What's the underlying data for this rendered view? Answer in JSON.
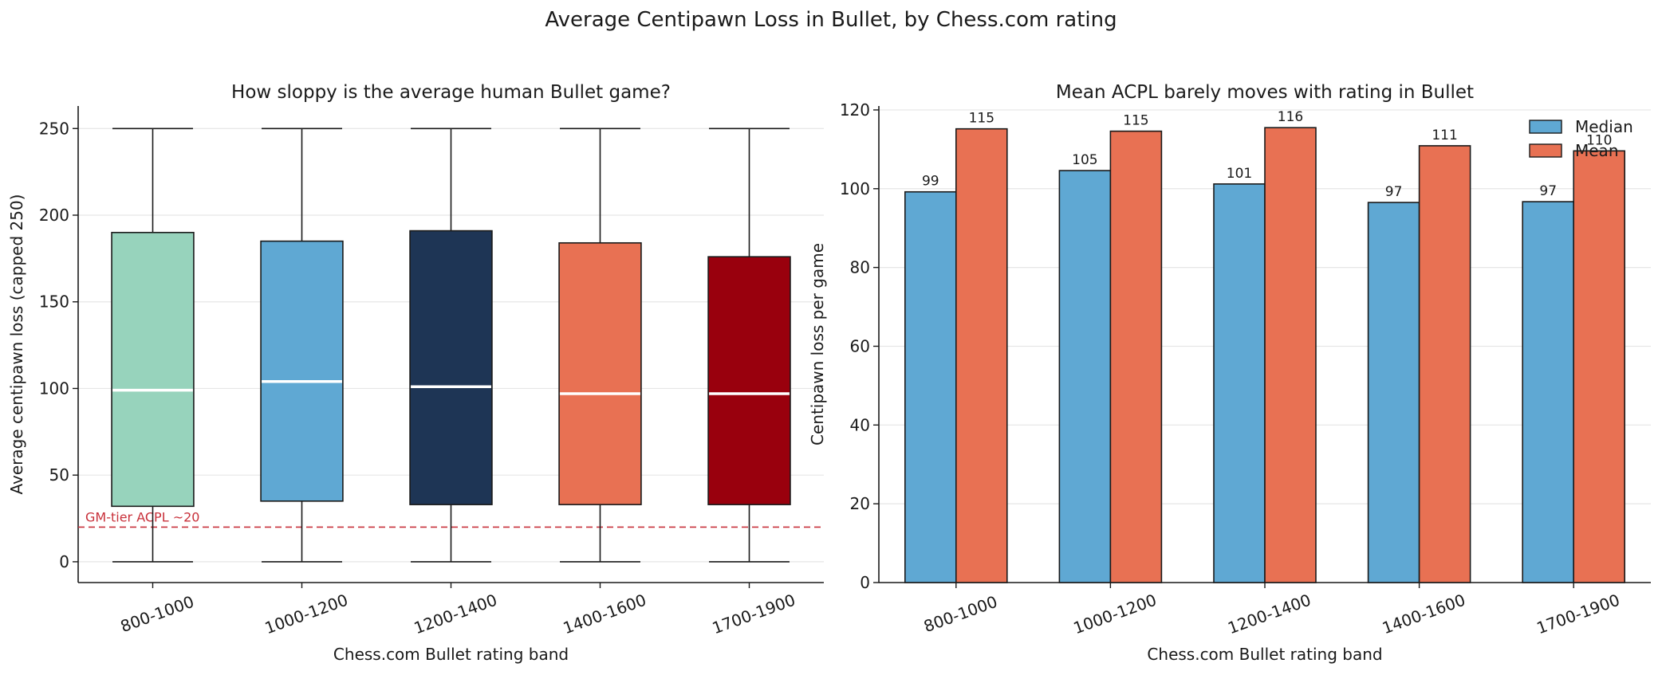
{
  "figure": {
    "suptitle": "Average Centipawn Loss in Bullet, by Chess.com rating"
  },
  "chart_data": [
    {
      "type": "box",
      "title": "How sloppy is the average human Bullet game?",
      "xlabel": "Chess.com Bullet rating band",
      "ylabel": "Average centipawn loss (capped 250)",
      "categories": [
        "800-1000",
        "1000-1200",
        "1200-1400",
        "1400-1600",
        "1700-1900"
      ],
      "ylim": [
        -12,
        263
      ],
      "yticks": [
        0,
        50,
        100,
        150,
        200,
        250
      ],
      "grid": "y",
      "boxes": [
        {
          "whisker_low": 0,
          "q1": 32,
          "median": 99,
          "q3": 190,
          "whisker_high": 250,
          "color": "#97d3bc"
        },
        {
          "whisker_low": 0,
          "q1": 35,
          "median": 104,
          "q3": 185,
          "whisker_high": 250,
          "color": "#5fa8d3"
        },
        {
          "whisker_low": 0,
          "q1": 33,
          "median": 101,
          "q3": 191,
          "whisker_high": 250,
          "color": "#1e3555"
        },
        {
          "whisker_low": 0,
          "q1": 33,
          "median": 97,
          "q3": 184,
          "whisker_high": 250,
          "color": "#e87153"
        },
        {
          "whisker_low": 0,
          "q1": 33,
          "median": 97,
          "q3": 176,
          "whisker_high": 250,
          "color": "#99000d"
        }
      ],
      "median_color": "#ffffff",
      "reference_line": {
        "y": 20,
        "label": "GM-tier ACPL ~20",
        "color": "#c8303a"
      }
    },
    {
      "type": "bar",
      "title": "Mean ACPL barely moves with rating in Bullet",
      "xlabel": "Chess.com Bullet rating band",
      "ylabel": "Centipawn loss per game",
      "categories": [
        "800-1000",
        "1000-1200",
        "1200-1400",
        "1400-1600",
        "1700-1900"
      ],
      "ylim": [
        0,
        121
      ],
      "yticks": [
        0,
        20,
        40,
        60,
        80,
        100,
        120
      ],
      "grid": "y",
      "legend": "top-right",
      "series": [
        {
          "name": "Median",
          "values": [
            99.2,
            104.6,
            101.2,
            96.5,
            96.7
          ],
          "labels": [
            "99",
            "105",
            "101",
            "97",
            "97"
          ],
          "color": "#5fa8d3"
        },
        {
          "name": "Mean",
          "values": [
            115.2,
            114.6,
            115.5,
            110.9,
            109.6
          ],
          "labels": [
            "115",
            "115",
            "116",
            "111",
            "110"
          ],
          "color": "#e87153"
        }
      ]
    }
  ]
}
